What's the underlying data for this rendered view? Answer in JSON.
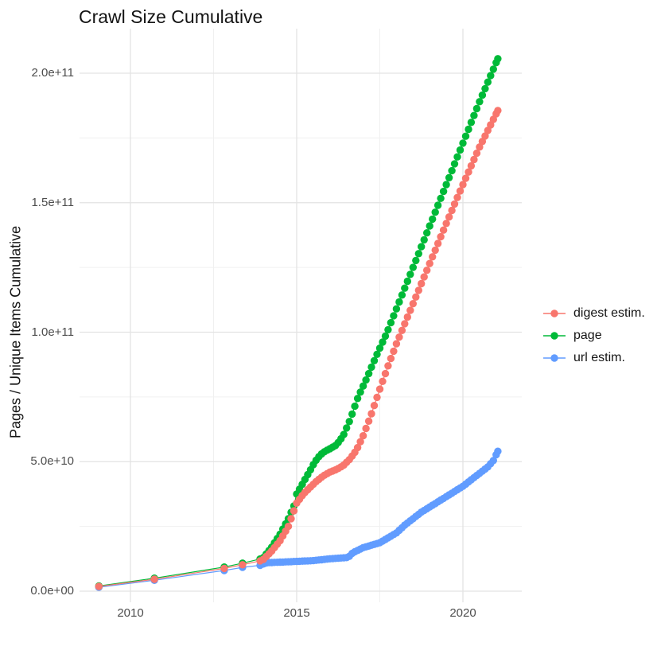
{
  "title": "Crawl Size Cumulative",
  "axes": {
    "y_title": "Pages / Unique Items Cumulative",
    "y_ticks": [
      {
        "value": 0,
        "label": "0.0e+00"
      },
      {
        "value": 50000000000.0,
        "label": "5.0e+10"
      },
      {
        "value": 100000000000.0,
        "label": "1.0e+11"
      },
      {
        "value": 150000000000.0,
        "label": "1.5e+11"
      },
      {
        "value": 200000000000.0,
        "label": "2.0e+11"
      }
    ],
    "y_minor_ticks": [
      25000000000.0,
      75000000000.0,
      125000000000.0,
      175000000000.0
    ],
    "x_ticks": [
      {
        "value": 2010,
        "label": "2010"
      },
      {
        "value": 2015,
        "label": "2015"
      },
      {
        "value": 2020,
        "label": "2020"
      }
    ],
    "x_minor_ticks": [
      2012.5,
      2017.5
    ]
  },
  "legend": {
    "items": [
      {
        "label": "digest estim.",
        "color": "#F8766D"
      },
      {
        "label": "page",
        "color": "#00BA38"
      },
      {
        "label": "url estim.",
        "color": "#619CFF"
      }
    ]
  },
  "colors": {
    "grid_major": "#E3E3E3",
    "grid_minor": "#F0F0F0",
    "tick_text": "#4D4D4D",
    "title_text": "#141414"
  },
  "chart_data": {
    "type": "scatter",
    "title": "Crawl Size Cumulative",
    "xlabel": "",
    "ylabel": "Pages / Unique Items Cumulative",
    "x_range": [
      2008.5,
      2021.75
    ],
    "y_range": [
      -5000000000.0,
      217000000000.0
    ],
    "grid": true,
    "legend_position": "right",
    "dense_monthly_from": 2014.0,
    "series": [
      {
        "name": "url estim.",
        "color": "#619CFF",
        "points": [
          [
            2009.05,
            1500000000.0
          ],
          [
            2010.72,
            4200000000.0
          ],
          [
            2012.82,
            8000000000.0
          ],
          [
            2013.37,
            9200000000.0
          ],
          [
            2013.9,
            10000000000.0
          ],
          [
            2014.1,
            11000000000.0
          ],
          [
            2014.5,
            11200000000.0
          ],
          [
            2015.0,
            11500000000.0
          ],
          [
            2015.5,
            11800000000.0
          ],
          [
            2016.0,
            12500000000.0
          ],
          [
            2016.55,
            13000000000.0
          ],
          [
            2016.7,
            15000000000.0
          ],
          [
            2016.8,
            15500000000.0
          ],
          [
            2017.0,
            16800000000.0
          ],
          [
            2017.5,
            18700000000.0
          ],
          [
            2018.0,
            22500000000.0
          ],
          [
            2018.25,
            25500000000.0
          ],
          [
            2018.5,
            28000000000.0
          ],
          [
            2018.75,
            30500000000.0
          ],
          [
            2019.0,
            32500000000.0
          ],
          [
            2019.25,
            34500000000.0
          ],
          [
            2019.5,
            36500000000.0
          ],
          [
            2019.75,
            38500000000.0
          ],
          [
            2020.0,
            40500000000.0
          ],
          [
            2020.25,
            43000000000.0
          ],
          [
            2020.5,
            45500000000.0
          ],
          [
            2020.75,
            48000000000.0
          ],
          [
            2020.92,
            50500000000.0
          ],
          [
            2021.05,
            54000000000.0
          ]
        ]
      },
      {
        "name": "page",
        "color": "#00BA38",
        "points": [
          [
            2009.05,
            2000000000.0
          ],
          [
            2010.72,
            5000000000.0
          ],
          [
            2012.82,
            9300000000.0
          ],
          [
            2013.37,
            10800000000.0
          ],
          [
            2013.9,
            12400000000.0
          ],
          [
            2014.0,
            13000000000.0
          ],
          [
            2014.25,
            17000000000.0
          ],
          [
            2014.5,
            22000000000.0
          ],
          [
            2014.75,
            28000000000.0
          ],
          [
            2014.92,
            33000000000.0
          ],
          [
            2015.0,
            37500000000.0
          ],
          [
            2015.2,
            42000000000.0
          ],
          [
            2015.4,
            46500000000.0
          ],
          [
            2015.55,
            50000000000.0
          ],
          [
            2015.7,
            52500000000.0
          ],
          [
            2015.85,
            54000000000.0
          ],
          [
            2016.0,
            55000000000.0
          ],
          [
            2016.2,
            56500000000.0
          ],
          [
            2016.4,
            60000000000.0
          ],
          [
            2016.6,
            66000000000.0
          ],
          [
            2016.85,
            75000000000.0
          ],
          [
            2017.1,
            82000000000.0
          ],
          [
            2017.4,
            91000000000.0
          ],
          [
            2017.72,
            100000000000.0
          ],
          [
            2018.0,
            109000000000.0
          ],
          [
            2018.5,
            125000000000.0
          ],
          [
            2019.0,
            141000000000.0
          ],
          [
            2019.5,
            157000000000.0
          ],
          [
            2020.0,
            173000000000.0
          ],
          [
            2020.5,
            189000000000.0
          ],
          [
            2021.05,
            205600000000.0
          ]
        ]
      },
      {
        "name": "digest estim.",
        "color": "#F8766D",
        "points": [
          [
            2009.05,
            1800000000.0
          ],
          [
            2010.72,
            4600000000.0
          ],
          [
            2012.82,
            8800000000.0
          ],
          [
            2013.37,
            10200000000.0
          ],
          [
            2013.9,
            11700000000.0
          ],
          [
            2014.0,
            12300000000.0
          ],
          [
            2014.25,
            15500000000.0
          ],
          [
            2014.5,
            19500000000.0
          ],
          [
            2014.75,
            25000000000.0
          ],
          [
            2015.0,
            34000000000.0
          ],
          [
            2015.2,
            37500000000.0
          ],
          [
            2015.4,
            40000000000.0
          ],
          [
            2015.6,
            42500000000.0
          ],
          [
            2015.8,
            44500000000.0
          ],
          [
            2016.0,
            46000000000.0
          ],
          [
            2016.2,
            47000000000.0
          ],
          [
            2016.4,
            48500000000.0
          ],
          [
            2016.6,
            51000000000.0
          ],
          [
            2016.8,
            54500000000.0
          ],
          [
            2017.0,
            60000000000.0
          ],
          [
            2017.25,
            68500000000.0
          ],
          [
            2017.5,
            78000000000.0
          ],
          [
            2017.75,
            87000000000.0
          ],
          [
            2018.0,
            95500000000.0
          ],
          [
            2018.5,
            111000000000.0
          ],
          [
            2019.0,
            126500000000.0
          ],
          [
            2019.5,
            142000000000.0
          ],
          [
            2020.0,
            157000000000.0
          ],
          [
            2020.5,
            171500000000.0
          ],
          [
            2021.05,
            185600000000.0
          ]
        ]
      }
    ]
  }
}
